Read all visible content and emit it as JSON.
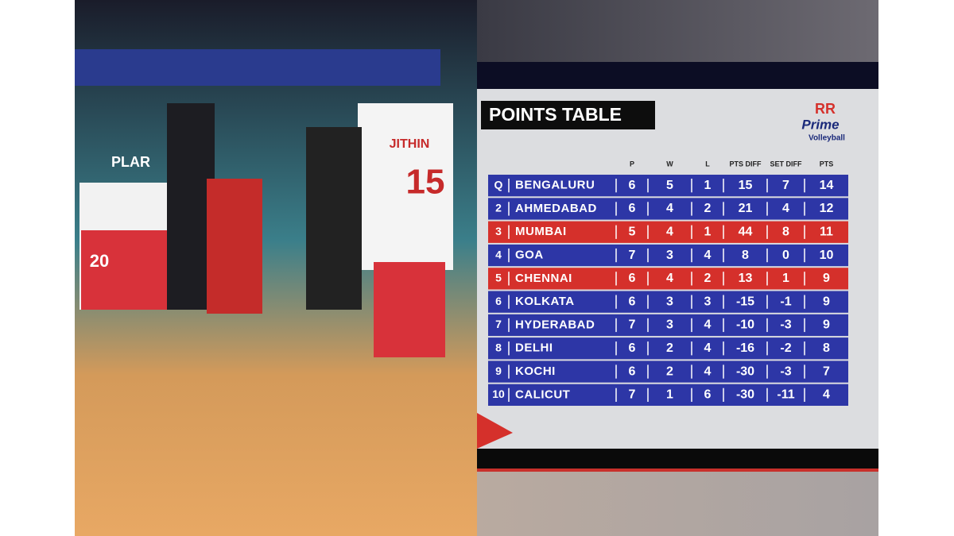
{
  "photo": {
    "jersey_texts": [
      "JITHIN",
      "15",
      "20",
      "PLAR"
    ]
  },
  "table": {
    "title": "POINTS TABLE",
    "logo": {
      "brand": "RR",
      "name": "Prime",
      "subtitle": "Volleyball"
    },
    "columns": [
      "P",
      "W",
      "L",
      "PTS DIFF",
      "SET DIFF",
      "PTS"
    ],
    "rows": [
      {
        "rank": "Q",
        "team": "BENGALURU",
        "values": [
          6,
          5,
          1,
          15,
          7,
          14
        ],
        "color": "#2d36a6"
      },
      {
        "rank": "2",
        "team": "AHMEDABAD",
        "values": [
          6,
          4,
          2,
          21,
          4,
          12
        ],
        "color": "#2d36a6"
      },
      {
        "rank": "3",
        "team": "MUMBAI",
        "values": [
          5,
          4,
          1,
          44,
          8,
          11
        ],
        "color": "#d5302b"
      },
      {
        "rank": "4",
        "team": "GOA",
        "values": [
          7,
          3,
          4,
          8,
          0,
          10
        ],
        "color": "#2d36a6"
      },
      {
        "rank": "5",
        "team": "CHENNAI",
        "values": [
          6,
          4,
          2,
          13,
          1,
          9
        ],
        "color": "#d5302b"
      },
      {
        "rank": "6",
        "team": "KOLKATA",
        "values": [
          6,
          3,
          3,
          -15,
          -1,
          9
        ],
        "color": "#2d36a6"
      },
      {
        "rank": "7",
        "team": "HYDERABAD",
        "values": [
          7,
          3,
          4,
          -10,
          -3,
          9
        ],
        "color": "#2d36a6"
      },
      {
        "rank": "8",
        "team": "DELHI",
        "values": [
          6,
          2,
          4,
          -16,
          -2,
          8
        ],
        "color": "#2d36a6"
      },
      {
        "rank": "9",
        "team": "KOCHI",
        "values": [
          6,
          2,
          4,
          -30,
          -3,
          7
        ],
        "color": "#2d36a6"
      },
      {
        "rank": "10",
        "team": "CALICUT",
        "values": [
          7,
          1,
          6,
          -30,
          -11,
          4
        ],
        "color": "#2d36a6"
      }
    ]
  }
}
